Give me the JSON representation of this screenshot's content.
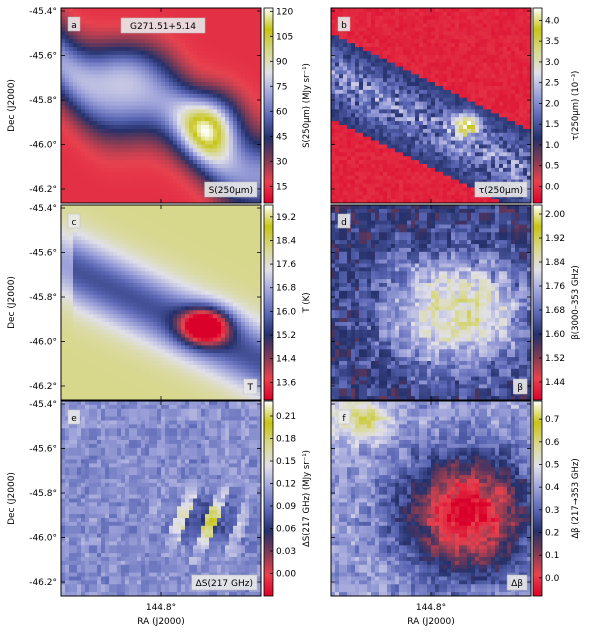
{
  "colors": {
    "cmap": [
      "#d9002a",
      "#e8424f",
      "#7f3b55",
      "#24306a",
      "#5b67b5",
      "#9ea3da",
      "#e1e0ea",
      "#d8d88f",
      "#c6c414",
      "#ffffff"
    ],
    "background": "#ffffff"
  },
  "chart_data": {
    "type": "heatmap",
    "layout": "3 rows x 2 columns of sky maps, each with its own vertical colorbar",
    "region": "G271.51+5.14",
    "xlabel": "RA (J2000)",
    "ylabel": "Dec (J2000)",
    "x_ticks": [
      "144.8°"
    ],
    "y_ticks": [
      "-45.4°",
      "-45.6°",
      "-45.8°",
      "-46.0°",
      "-46.2°"
    ],
    "panels": [
      {
        "letter": "a",
        "title": "G271.51+5.14",
        "name": "S(250μm)",
        "colorbar_label": "S(250μm) (MJy sr⁻¹)",
        "colorbar_ticks": [
          "120",
          "105",
          "90",
          "75",
          "60",
          "45",
          "30",
          "15"
        ],
        "range": [
          5,
          122
        ],
        "description": "diffuse red background with a blue ridge running from the upper-left to lower-right and a bright yellow clump on the right"
      },
      {
        "letter": "b",
        "title": "",
        "name": "τ(250μm)",
        "colorbar_label": "τ(250μm) (10⁻³)",
        "colorbar_ticks": [
          "4.0",
          "3.5",
          "3.0",
          "2.5",
          "2.0",
          "1.5",
          "1.0",
          "0.5",
          "0.0"
        ],
        "range": [
          -0.4,
          4.3
        ],
        "description": "red background with a mottled dark-blue/white filament and a thin yellow core near the centre right"
      },
      {
        "letter": "c",
        "title": "",
        "name": "T",
        "colorbar_label": "T (K)",
        "colorbar_ticks": [
          "19.2",
          "18.4",
          "17.6",
          "16.8",
          "16.0",
          "15.2",
          "14.4",
          "13.6"
        ],
        "range": [
          13.0,
          19.6
        ],
        "description": "warm yellow surroundings with a cold dark-blue/red core on the right of the cloud"
      },
      {
        "letter": "d",
        "title": "",
        "name": "β",
        "colorbar_label": "β(3000–353 GHz)",
        "colorbar_ticks": [
          "2.00",
          "1.92",
          "1.84",
          "1.76",
          "1.68",
          "1.60",
          "1.52",
          "1.44"
        ],
        "range": [
          1.38,
          2.03
        ],
        "description": "blocky map, yellow high-β plateau in the centre and lower right, blue/red blocks at the edges"
      },
      {
        "letter": "e",
        "title": "",
        "name": "ΔS(217 GHz)",
        "colorbar_label": "ΔS(217 GHz) (MJy sr⁻¹)",
        "colorbar_ticks": [
          "0.21",
          "0.18",
          "0.15",
          "0.12",
          "0.09",
          "0.06",
          "0.03",
          "0.00"
        ],
        "range": [
          -0.03,
          0.23
        ],
        "description": "patchy residual map, mostly light blue with yellow and red stripes near the cloud core"
      },
      {
        "letter": "f",
        "title": "",
        "name": "Δβ",
        "colorbar_label": "Δβ (217→353 GHz)",
        "colorbar_ticks": [
          "0.7",
          "0.6",
          "0.5",
          "0.4",
          "0.3",
          "0.2",
          "0.1",
          "0.0"
        ],
        "range": [
          -0.08,
          0.78
        ],
        "description": "blue/white blocks around a large red region in the centre-right; yellow blocks at the top left"
      }
    ]
  }
}
